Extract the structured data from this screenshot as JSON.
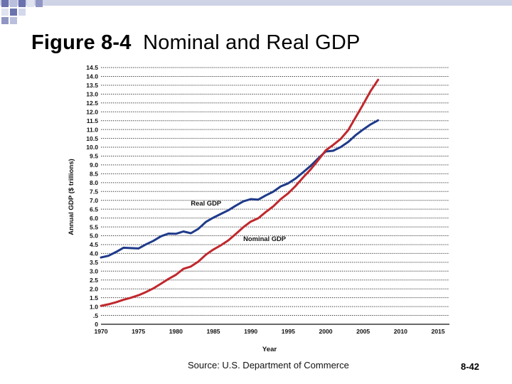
{
  "slide": {
    "figure_label": "Figure 8-4",
    "title": "Nominal and Real GDP",
    "source": "Source: U.S. Department of Commerce",
    "page_number": "8-42"
  },
  "chart_data": {
    "type": "line",
    "title": "",
    "xlabel": "Year",
    "ylabel": "Annual GDP ($ trillions)",
    "xlim": [
      1970,
      2015
    ],
    "ylim": [
      0,
      14.5
    ],
    "grid": true,
    "x_ticks": [
      "1970",
      "1975",
      "1980",
      "1985",
      "1990",
      "1995",
      "2000",
      "2005",
      "2010",
      "2015"
    ],
    "y_ticks": [
      "0",
      ".5",
      "1.0",
      "1.5",
      "2.0",
      "2.5",
      "3.0",
      "3.5",
      "4.0",
      "4.5",
      "5.0",
      "5.5",
      "6.0",
      "6.5",
      "7.0",
      "7.5",
      "8.0",
      "8.5",
      "9.0",
      "9.5",
      "10.0",
      "10.5",
      "11.0",
      "11.5",
      "12.0",
      "12.5",
      "13.0",
      "13.5",
      "14.0",
      "14.5"
    ],
    "series": [
      {
        "name": "Real GDP",
        "color": "#1f3a8a",
        "x": [
          1970,
          1971,
          1972,
          1973,
          1974,
          1975,
          1976,
          1977,
          1978,
          1979,
          1980,
          1981,
          1982,
          1983,
          1984,
          1985,
          1986,
          1987,
          1988,
          1989,
          1990,
          1991,
          1992,
          1993,
          1994,
          1995,
          1996,
          1997,
          1998,
          1999,
          2000,
          2001,
          2002,
          2003,
          2004,
          2005,
          2006,
          2007
        ],
        "values": [
          3.77,
          3.87,
          4.08,
          4.32,
          4.3,
          4.28,
          4.51,
          4.71,
          4.97,
          5.12,
          5.11,
          5.24,
          5.14,
          5.39,
          5.78,
          6.02,
          6.23,
          6.44,
          6.7,
          6.94,
          7.07,
          7.04,
          7.28,
          7.49,
          7.79,
          7.96,
          8.24,
          8.59,
          8.95,
          9.37,
          9.76,
          9.8,
          10.01,
          10.3,
          10.68,
          11.0,
          11.29,
          11.52
        ]
      },
      {
        "name": "Nominal GDP",
        "color": "#c0282d",
        "x": [
          1970,
          1971,
          1972,
          1973,
          1974,
          1975,
          1976,
          1977,
          1978,
          1979,
          1980,
          1981,
          1982,
          1983,
          1984,
          1985,
          1986,
          1987,
          1988,
          1989,
          1990,
          1991,
          1992,
          1993,
          1994,
          1995,
          1996,
          1997,
          1998,
          1999,
          2000,
          2001,
          2002,
          2003,
          2004,
          2005,
          2006,
          2007
        ],
        "values": [
          1.04,
          1.13,
          1.24,
          1.38,
          1.5,
          1.64,
          1.82,
          2.03,
          2.29,
          2.56,
          2.79,
          3.13,
          3.26,
          3.54,
          3.93,
          4.22,
          4.46,
          4.74,
          5.1,
          5.48,
          5.8,
          5.99,
          6.34,
          6.66,
          7.07,
          7.4,
          7.82,
          8.3,
          8.75,
          9.27,
          9.82,
          10.13,
          10.47,
          10.96,
          11.69,
          12.42,
          13.18,
          13.81
        ]
      }
    ],
    "annotations": [
      {
        "text": "Real GDP",
        "x": 1982,
        "y": 6.7
      },
      {
        "text": "Nominal GDP",
        "x": 1989,
        "y": 4.7
      }
    ]
  }
}
